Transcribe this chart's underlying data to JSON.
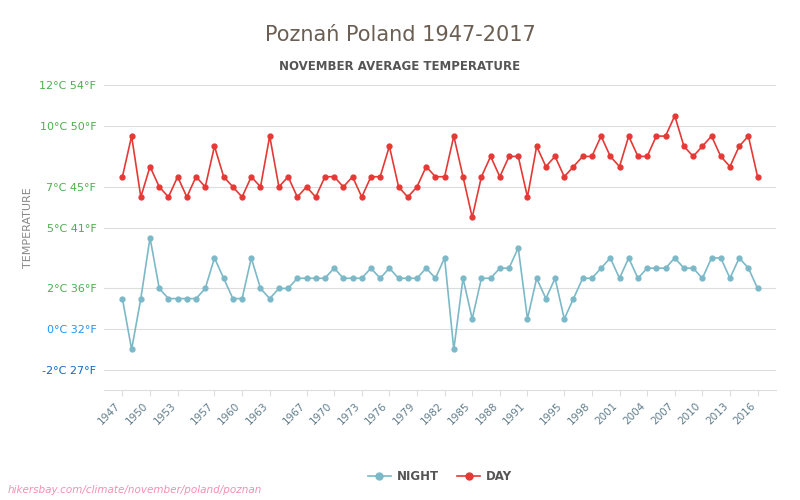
{
  "title": "Poznań Poland 1947-2017",
  "subtitle": "NOVEMBER AVERAGE TEMPERATURE",
  "ylabel": "TEMPERATURE",
  "watermark": "hikersbay.com/climate/november/poland/poznan",
  "title_color": "#6b5e52",
  "subtitle_color": "#555555",
  "ylabel_color": "#888888",
  "background_color": "#ffffff",
  "grid_color": "#dddddd",
  "ytick_color_green": "#4caf50",
  "ytick_color_blue": "#2196f3",
  "ytick_color_neg": "#1565c0",
  "xtick_color": "#607d8b",
  "watermark_color": "#f48fb1",
  "day_color": "#e53935",
  "night_color": "#7cb9c8",
  "years": [
    1947,
    1948,
    1949,
    1950,
    1951,
    1952,
    1953,
    1954,
    1955,
    1956,
    1957,
    1958,
    1959,
    1960,
    1961,
    1962,
    1963,
    1964,
    1965,
    1966,
    1967,
    1968,
    1969,
    1970,
    1971,
    1972,
    1973,
    1974,
    1975,
    1976,
    1977,
    1978,
    1979,
    1980,
    1981,
    1982,
    1983,
    1984,
    1985,
    1986,
    1987,
    1988,
    1989,
    1990,
    1991,
    1992,
    1993,
    1994,
    1995,
    1996,
    1997,
    1998,
    1999,
    2000,
    2001,
    2002,
    2003,
    2004,
    2005,
    2006,
    2007,
    2008,
    2009,
    2010,
    2011,
    2012,
    2013,
    2014,
    2015,
    2016
  ],
  "day_temps": [
    7.5,
    9.5,
    6.5,
    8.0,
    7.0,
    6.5,
    7.5,
    6.5,
    7.5,
    7.0,
    9.0,
    7.5,
    7.0,
    6.5,
    7.5,
    7.0,
    9.5,
    7.0,
    7.5,
    6.5,
    7.0,
    6.5,
    7.5,
    7.5,
    7.0,
    7.5,
    6.5,
    7.5,
    7.5,
    9.0,
    7.0,
    6.5,
    7.0,
    8.0,
    7.5,
    7.5,
    9.5,
    7.5,
    5.5,
    7.5,
    8.5,
    7.5,
    8.5,
    8.5,
    6.5,
    9.0,
    8.0,
    8.5,
    7.5,
    8.0,
    8.5,
    8.5,
    9.5,
    8.5,
    8.0,
    9.5,
    8.5,
    8.5,
    9.5,
    9.5,
    10.5,
    9.0,
    8.5,
    9.0,
    9.5,
    8.5,
    8.0,
    9.0,
    9.5,
    7.5
  ],
  "night_temps": [
    1.5,
    -1.0,
    1.5,
    4.5,
    2.0,
    1.5,
    1.5,
    1.5,
    1.5,
    2.0,
    3.5,
    2.5,
    1.5,
    1.5,
    3.5,
    2.0,
    1.5,
    2.0,
    2.0,
    2.5,
    2.5,
    2.5,
    2.5,
    3.0,
    2.5,
    2.5,
    2.5,
    3.0,
    2.5,
    3.0,
    2.5,
    2.5,
    2.5,
    3.0,
    2.5,
    3.5,
    -1.0,
    2.5,
    0.5,
    2.5,
    2.5,
    3.0,
    3.0,
    4.0,
    0.5,
    2.5,
    1.5,
    2.5,
    0.5,
    1.5,
    2.5,
    2.5,
    3.0,
    3.5,
    2.5,
    3.5,
    2.5,
    3.0,
    3.0,
    3.0,
    3.5,
    3.0,
    3.0,
    2.5,
    3.5,
    3.5,
    2.5,
    3.5,
    3.0,
    2.0
  ],
  "yticks_c": [
    -2,
    0,
    2,
    5,
    7,
    10,
    12
  ],
  "yticks_f": [
    27,
    32,
    36,
    41,
    45,
    50,
    54
  ],
  "xtick_years": [
    1947,
    1950,
    1953,
    1957,
    1960,
    1963,
    1967,
    1970,
    1973,
    1976,
    1979,
    1982,
    1985,
    1988,
    1991,
    1995,
    1998,
    2001,
    2004,
    2007,
    2010,
    2013,
    2016
  ],
  "ylim": [
    -3,
    13
  ],
  "legend_night": "NIGHT",
  "legend_day": "DAY"
}
